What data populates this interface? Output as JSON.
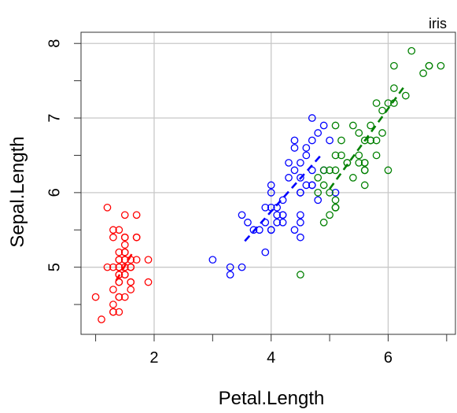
{
  "chart_data": {
    "type": "scatter",
    "title": "",
    "panel_label": "iris",
    "xlabel": "Petal.Length",
    "ylabel": "Sepal.Length",
    "xlim": [
      0.75,
      7.15
    ],
    "ylim": [
      4.1,
      8.15
    ],
    "grid": true,
    "x_label_ticks": [
      2,
      4,
      6
    ],
    "x_minor_ticks": [
      1,
      3,
      5,
      7
    ],
    "y_label_ticks": [
      5,
      6,
      7,
      8
    ],
    "y_minor_ticks": [
      4.5,
      5.5,
      6.5,
      7.5
    ],
    "colors": {
      "setosa": "#ff0000",
      "versicolor": "#0000ff",
      "virginica": "#008000",
      "grid": "#c8c8c8",
      "axis": "#333333"
    },
    "series": [
      {
        "color": "#ff0000",
        "points": [
          [
            1.4,
            5.1
          ],
          [
            1.4,
            4.9
          ],
          [
            1.3,
            4.7
          ],
          [
            1.5,
            4.6
          ],
          [
            1.4,
            5.0
          ],
          [
            1.7,
            5.4
          ],
          [
            1.4,
            4.6
          ],
          [
            1.5,
            5.0
          ],
          [
            1.4,
            4.4
          ],
          [
            1.5,
            4.9
          ],
          [
            1.5,
            5.4
          ],
          [
            1.6,
            4.8
          ],
          [
            1.4,
            4.8
          ],
          [
            1.1,
            4.3
          ],
          [
            1.2,
            5.8
          ],
          [
            1.5,
            5.7
          ],
          [
            1.3,
            5.4
          ],
          [
            1.4,
            5.1
          ],
          [
            1.7,
            5.7
          ],
          [
            1.5,
            5.1
          ],
          [
            1.7,
            5.4
          ],
          [
            1.5,
            5.1
          ],
          [
            1.0,
            4.6
          ],
          [
            1.7,
            5.1
          ],
          [
            1.9,
            4.8
          ],
          [
            1.6,
            5.0
          ],
          [
            1.6,
            5.0
          ],
          [
            1.5,
            5.2
          ],
          [
            1.4,
            5.2
          ],
          [
            1.6,
            4.7
          ],
          [
            1.6,
            4.8
          ],
          [
            1.5,
            5.4
          ],
          [
            1.5,
            5.2
          ],
          [
            1.4,
            5.5
          ],
          [
            1.5,
            4.9
          ],
          [
            1.2,
            5.0
          ],
          [
            1.3,
            5.5
          ],
          [
            1.4,
            4.9
          ],
          [
            1.3,
            4.4
          ],
          [
            1.5,
            5.1
          ],
          [
            1.3,
            5.0
          ],
          [
            1.3,
            4.5
          ],
          [
            1.3,
            4.4
          ],
          [
            1.6,
            5.0
          ],
          [
            1.9,
            5.1
          ],
          [
            1.4,
            4.8
          ],
          [
            1.6,
            5.1
          ],
          [
            1.4,
            4.6
          ],
          [
            1.5,
            5.3
          ],
          [
            1.4,
            5.0
          ]
        ],
        "fit_line": [
          [
            1.35,
            4.82
          ],
          [
            1.62,
            5.18
          ]
        ]
      },
      {
        "color": "#0000ff",
        "points": [
          [
            4.7,
            7.0
          ],
          [
            4.5,
            6.4
          ],
          [
            4.9,
            6.9
          ],
          [
            4.0,
            5.5
          ],
          [
            4.6,
            6.5
          ],
          [
            4.5,
            5.7
          ],
          [
            4.7,
            6.3
          ],
          [
            3.3,
            4.9
          ],
          [
            4.6,
            6.6
          ],
          [
            3.9,
            5.2
          ],
          [
            3.5,
            5.0
          ],
          [
            4.2,
            5.9
          ],
          [
            4.0,
            6.0
          ],
          [
            4.7,
            6.1
          ],
          [
            3.6,
            5.6
          ],
          [
            4.4,
            6.7
          ],
          [
            4.5,
            5.6
          ],
          [
            4.1,
            5.8
          ],
          [
            4.5,
            6.2
          ],
          [
            3.9,
            5.6
          ],
          [
            4.8,
            5.9
          ],
          [
            4.0,
            6.1
          ],
          [
            4.9,
            6.3
          ],
          [
            4.7,
            6.1
          ],
          [
            4.3,
            6.4
          ],
          [
            4.4,
            6.6
          ],
          [
            4.8,
            6.8
          ],
          [
            5.0,
            6.7
          ],
          [
            4.5,
            6.0
          ],
          [
            3.5,
            5.7
          ],
          [
            3.8,
            5.5
          ],
          [
            3.7,
            5.5
          ],
          [
            3.9,
            5.8
          ],
          [
            5.1,
            6.0
          ],
          [
            4.5,
            5.4
          ],
          [
            4.5,
            6.0
          ],
          [
            4.7,
            6.7
          ],
          [
            4.4,
            6.3
          ],
          [
            4.1,
            5.6
          ],
          [
            4.0,
            5.5
          ],
          [
            4.4,
            5.5
          ],
          [
            4.6,
            6.1
          ],
          [
            4.0,
            5.8
          ],
          [
            3.3,
            5.0
          ],
          [
            4.2,
            5.6
          ],
          [
            4.2,
            5.7
          ],
          [
            4.2,
            5.7
          ],
          [
            4.3,
            6.2
          ],
          [
            3.0,
            5.1
          ],
          [
            4.1,
            5.7
          ]
        ],
        "fit_line": [
          [
            3.55,
            5.35
          ],
          [
            4.85,
            6.5
          ]
        ]
      },
      {
        "color": "#008000",
        "points": [
          [
            6.0,
            6.3
          ],
          [
            5.1,
            5.8
          ],
          [
            5.9,
            7.1
          ],
          [
            5.6,
            6.3
          ],
          [
            5.8,
            6.5
          ],
          [
            6.6,
            7.6
          ],
          [
            4.5,
            4.9
          ],
          [
            6.3,
            7.3
          ],
          [
            5.8,
            6.7
          ],
          [
            6.1,
            7.2
          ],
          [
            5.1,
            6.5
          ],
          [
            5.3,
            6.4
          ],
          [
            5.5,
            6.8
          ],
          [
            5.0,
            5.7
          ],
          [
            5.1,
            5.8
          ],
          [
            5.3,
            6.4
          ],
          [
            5.5,
            6.5
          ],
          [
            6.7,
            7.7
          ],
          [
            6.9,
            7.7
          ],
          [
            5.0,
            6.0
          ],
          [
            5.7,
            6.9
          ],
          [
            4.9,
            5.6
          ],
          [
            6.7,
            7.7
          ],
          [
            4.9,
            6.3
          ],
          [
            5.7,
            6.7
          ],
          [
            6.0,
            7.2
          ],
          [
            4.8,
            6.2
          ],
          [
            4.9,
            6.1
          ],
          [
            5.6,
            6.4
          ],
          [
            5.8,
            7.2
          ],
          [
            6.1,
            7.4
          ],
          [
            6.4,
            7.9
          ],
          [
            5.6,
            6.4
          ],
          [
            5.1,
            6.3
          ],
          [
            5.6,
            6.1
          ],
          [
            6.1,
            7.7
          ],
          [
            5.6,
            6.3
          ],
          [
            5.5,
            6.4
          ],
          [
            4.8,
            6.0
          ],
          [
            5.4,
            6.9
          ],
          [
            5.6,
            6.7
          ],
          [
            5.1,
            6.9
          ],
          [
            5.1,
            5.8
          ],
          [
            5.9,
            6.8
          ],
          [
            5.7,
            6.7
          ],
          [
            5.2,
            6.7
          ],
          [
            5.0,
            6.3
          ],
          [
            5.2,
            6.5
          ],
          [
            5.4,
            6.2
          ],
          [
            5.1,
            5.9
          ]
        ],
        "fit_line": [
          [
            5.0,
            6.05
          ],
          [
            6.3,
            7.45
          ]
        ]
      }
    ]
  }
}
